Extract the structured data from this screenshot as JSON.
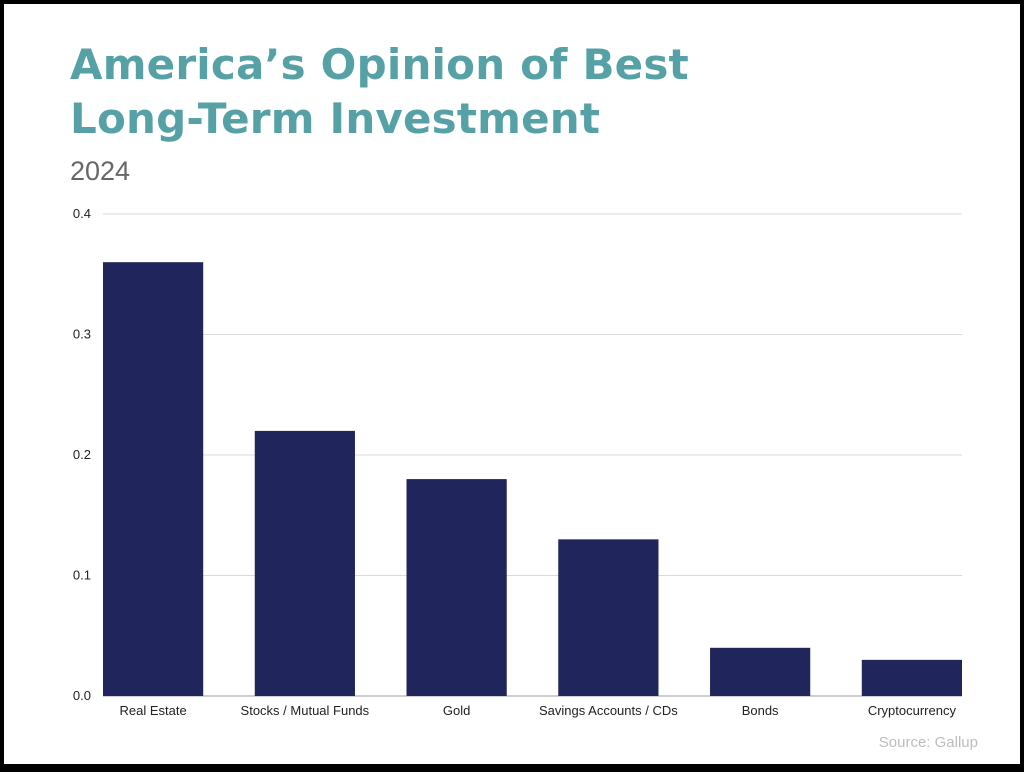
{
  "header": {
    "title_line1": "America’s Opinion of Best",
    "title_line2": "Long-Term Investment",
    "subtitle": "2024"
  },
  "footer": {
    "source": "Source: Gallup"
  },
  "colors": {
    "bar": "#20265b",
    "title": "#56a1a6",
    "grid": "#d9d9d9",
    "subtitle": "#666666",
    "source": "#bdbdbd"
  },
  "chart_data": {
    "type": "bar",
    "title": "America’s Opinion of Best Long-Term Investment",
    "subtitle": "2024",
    "categories": [
      "Real Estate",
      "Stocks / Mutual Funds",
      "Gold",
      "Savings Accounts / CDs",
      "Bonds",
      "Cryptocurrency"
    ],
    "values": [
      0.36,
      0.22,
      0.18,
      0.13,
      0.04,
      0.03
    ],
    "xlabel": "",
    "ylabel": "",
    "ylim": [
      0,
      0.4
    ],
    "yticks": [
      "0.0",
      "0.1",
      "0.2",
      "0.3",
      "0.4"
    ],
    "grid": true,
    "legend": "none"
  }
}
